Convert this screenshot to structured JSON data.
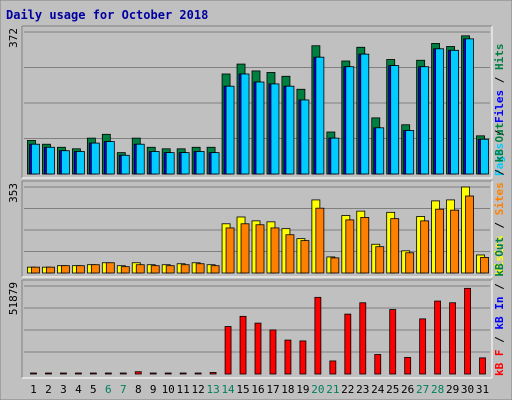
{
  "chart_data": {
    "type": "bar",
    "title": "Daily usage for October 2018",
    "categories": [
      "1",
      "2",
      "3",
      "4",
      "5",
      "6",
      "7",
      "8",
      "9",
      "10",
      "11",
      "12",
      "13",
      "14",
      "15",
      "16",
      "17",
      "18",
      "19",
      "20",
      "21",
      "22",
      "23",
      "24",
      "25",
      "26",
      "27",
      "28",
      "29",
      "30",
      "31"
    ],
    "weekend_days": [
      "6",
      "7",
      "13",
      "14",
      "20",
      "21",
      "27",
      "28"
    ],
    "panels": [
      {
        "id": "hits",
        "max_label": "372",
        "ylim": [
          0,
          372
        ],
        "legend": [
          "Pages",
          "/",
          "Files",
          "/",
          "Hits"
        ],
        "legend_colors": [
          "#00ccff",
          "#000000",
          "#0000ff",
          "#000000",
          "#008040"
        ],
        "series": [
          {
            "name": "Hits",
            "color": "#008040",
            "values": [
              88,
              78,
              70,
              66,
              94,
              104,
              56,
              94,
              70,
              66,
              66,
              70,
              70,
              262,
              288,
              270,
              266,
              256,
              222,
              336,
              110,
              296,
              332,
              147,
              300,
              129,
              298,
              342,
              334,
              362,
              100
            ]
          },
          {
            "name": "Files",
            "color": "#0000ff",
            "values": [
              78,
              70,
              61,
              59,
              81,
              85,
              49,
              78,
              59,
              56,
              56,
              59,
              56,
              230,
              262,
              241,
              236,
              230,
              194,
              306,
              94,
              281,
              314,
              121,
              284,
              114,
              281,
              328,
              324,
              354,
              91
            ]
          },
          {
            "name": "Pages",
            "color": "#00ccff",
            "values": [
              78,
              70,
              61,
              59,
              81,
              85,
              49,
              78,
              59,
              56,
              56,
              59,
              56,
              230,
              262,
              241,
              236,
              230,
              194,
              306,
              94,
              281,
              314,
              121,
              284,
              114,
              281,
              328,
              324,
              354,
              91
            ]
          }
        ]
      },
      {
        "id": "visits",
        "max_label": "353",
        "ylim": [
          0,
          353
        ],
        "legend": [
          "Visits",
          "/",
          "Sites",
          "/",
          "kB Out"
        ],
        "legend_colors": [
          "#ffff00",
          "#000000",
          "#ff8000",
          "#000000",
          "#008040"
        ],
        "series": [
          {
            "name": "Visits",
            "color": "#ffff00",
            "values": [
              24,
              24,
              30,
              30,
              34,
              42,
              30,
              42,
              34,
              34,
              38,
              42,
              34,
              202,
              230,
              214,
              210,
              182,
              141,
              300,
              66,
              236,
              254,
              118,
              249,
              91,
              232,
              296,
              300,
              353,
              74
            ]
          },
          {
            "name": "Sites",
            "color": "#ff8000",
            "values": [
              24,
              24,
              30,
              30,
              34,
              42,
              26,
              34,
              30,
              30,
              34,
              38,
              30,
              185,
              202,
              198,
              185,
              157,
              133,
              266,
              62,
              218,
              228,
              108,
              223,
              83,
              214,
              262,
              258,
              316,
              64
            ]
          }
        ]
      },
      {
        "id": "kbytes",
        "max_label": "51879",
        "ylim": [
          0,
          51879
        ],
        "legend": [
          "kB F",
          "/",
          "kB In",
          "/",
          "kB Out"
        ],
        "legend_colors": [
          "#ff0000",
          "#000000",
          "#0000ff",
          "#000000",
          "#008040"
        ],
        "series": [
          {
            "name": "kB F",
            "color": "#ff0000",
            "values": [
              250,
              250,
              250,
              250,
              250,
              250,
              250,
              1350,
              250,
              250,
              250,
              250,
              900,
              28000,
              34000,
              30000,
              26000,
              20000,
              19500,
              45200,
              7700,
              35300,
              42000,
              11500,
              38000,
              9800,
              32500,
              43000,
              42000,
              50500,
              9500
            ]
          }
        ]
      }
    ]
  }
}
